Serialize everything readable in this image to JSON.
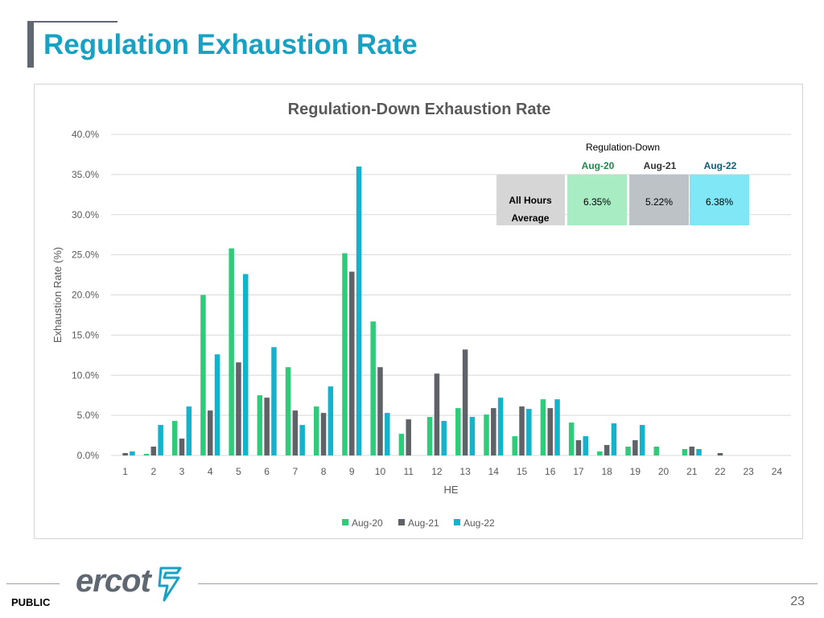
{
  "page": {
    "title": "Regulation Exhaustion Rate",
    "footer_label": "PUBLIC",
    "page_number": "23",
    "logo_text": "ercot"
  },
  "colors": {
    "title": "#17a2c4",
    "aug20": "#2ecc7a",
    "aug21": "#5f6368",
    "aug22": "#14b3cc"
  },
  "chart_data": {
    "type": "bar",
    "title": "Regulation-Down Exhaustion Rate",
    "xlabel": "HE",
    "ylabel": "Exhaustion Rate (%)",
    "ylim": [
      0,
      40
    ],
    "yticks": [
      "0.0%",
      "5.0%",
      "10.0%",
      "15.0%",
      "20.0%",
      "25.0%",
      "30.0%",
      "35.0%",
      "40.0%"
    ],
    "grid": true,
    "legend_position": "bottom-center",
    "categories": [
      "1",
      "2",
      "3",
      "4",
      "5",
      "6",
      "7",
      "8",
      "9",
      "10",
      "11",
      "12",
      "13",
      "14",
      "15",
      "16",
      "17",
      "18",
      "19",
      "20",
      "21",
      "22",
      "23",
      "24"
    ],
    "series": [
      {
        "name": "Aug-20",
        "color": "#2ecc7a",
        "values": [
          0.0,
          0.2,
          4.3,
          20.0,
          25.8,
          7.5,
          11.0,
          6.1,
          25.2,
          16.7,
          2.7,
          4.8,
          5.9,
          5.1,
          2.4,
          7.0,
          4.1,
          0.5,
          1.1,
          1.1,
          0.8,
          0.0,
          0.0,
          0.0
        ]
      },
      {
        "name": "Aug-21",
        "color": "#5f6368",
        "values": [
          0.3,
          1.1,
          2.1,
          5.6,
          11.6,
          7.2,
          5.6,
          5.3,
          22.9,
          11.0,
          4.5,
          10.2,
          13.2,
          5.9,
          6.1,
          5.9,
          1.9,
          1.3,
          1.9,
          0.0,
          1.1,
          0.3,
          0.0,
          0.0
        ]
      },
      {
        "name": "Aug-22",
        "color": "#14b3cc",
        "values": [
          0.5,
          3.8,
          6.1,
          12.6,
          22.6,
          13.5,
          3.8,
          8.6,
          36.0,
          5.3,
          0.0,
          4.3,
          4.8,
          7.2,
          5.8,
          7.0,
          2.4,
          4.0,
          3.8,
          0.0,
          0.8,
          0.0,
          0.0,
          0.0
        ]
      }
    ],
    "summary_table": {
      "header": "Regulation-Down",
      "row_label_line1": "All Hours",
      "row_label_line2": "Average",
      "columns": [
        {
          "label": "Aug-20",
          "value": "6.35%",
          "label_color": "#1e8a4a",
          "fill": "#a8ecc4"
        },
        {
          "label": "Aug-21",
          "value": "5.22%",
          "label_color": "#333333",
          "fill": "#bcc2c6"
        },
        {
          "label": "Aug-22",
          "value": "6.38%",
          "label_color": "#0e5f74",
          "fill": "#7fe7f5"
        }
      ]
    }
  }
}
